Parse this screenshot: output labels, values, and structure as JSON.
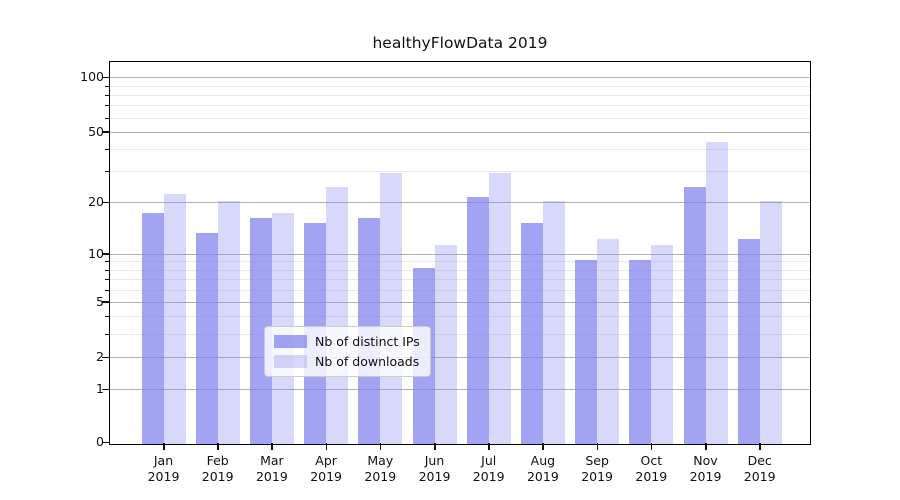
{
  "title": "healthyFlowData 2019",
  "chart_data": {
    "type": "bar",
    "categories": [
      "Jan",
      "Feb",
      "Mar",
      "Apr",
      "May",
      "Jun",
      "Jul",
      "Aug",
      "Sep",
      "Oct",
      "Nov",
      "Dec"
    ],
    "year_label": "2019",
    "series": [
      {
        "name": "Nb of distinct IPs",
        "color": "rgba(127,127,238,0.72)",
        "values": [
          17,
          13,
          16,
          15,
          16,
          8,
          21,
          15,
          9,
          9,
          24,
          12
        ]
      },
      {
        "name": "Nb of downloads",
        "color": "rgba(127,127,238,0.30)",
        "values": [
          22,
          20,
          17,
          24,
          29,
          11,
          29,
          20,
          12,
          11,
          43,
          20
        ]
      }
    ],
    "title": "healthyFlowData 2019",
    "xlabel": "",
    "ylabel": "",
    "yscale": "symlog: y position proportional to log10(1+value)",
    "y_major_ticks": [
      100,
      50,
      20,
      10,
      5,
      2,
      1,
      0
    ],
    "y_minor_gridlines": [
      90,
      80,
      70,
      60,
      40,
      30,
      9,
      8,
      7,
      6,
      4,
      3
    ],
    "ylim": [
      0,
      120
    ],
    "grid": true,
    "legend_position": "lower center"
  },
  "colors": {
    "bar_base": "#7f7fee",
    "major_grid": "#b0b0b0",
    "minor_grid": "#e8e8e8",
    "axis": "#000000",
    "text": "#111111"
  }
}
